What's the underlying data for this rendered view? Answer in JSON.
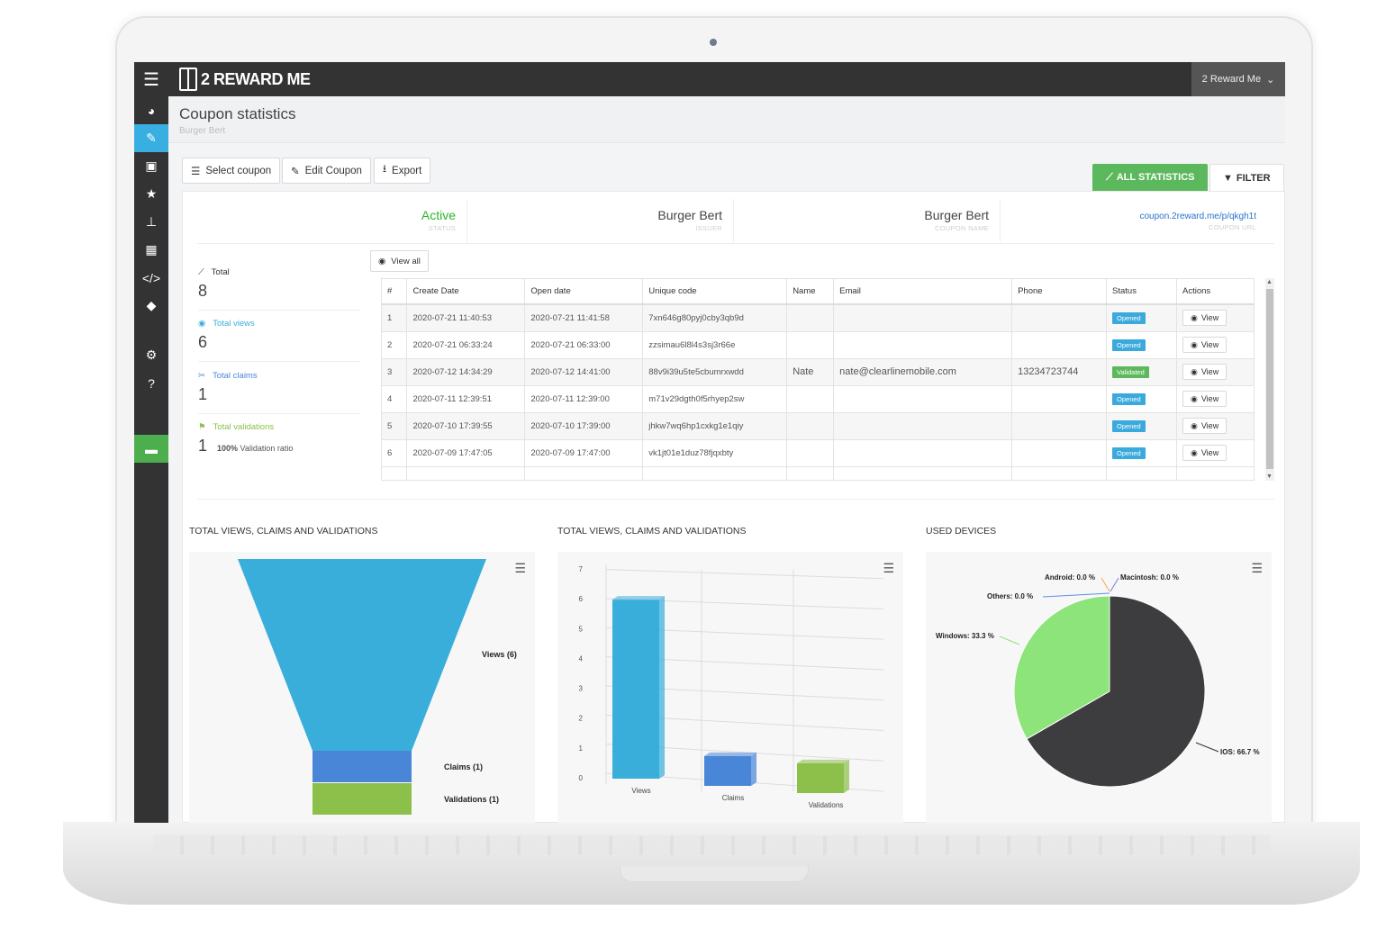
{
  "app": {
    "logo_text": "2 REWARD ME",
    "user_menu": "2 Reward Me"
  },
  "header": {
    "title": "Coupon statistics",
    "subtitle": "Burger Bert"
  },
  "toolbar": {
    "select_coupon": "Select coupon",
    "edit_coupon": "Edit Coupon",
    "export": "Export",
    "all_statistics": "ALL STATISTICS",
    "filter": "FILTER"
  },
  "info": [
    {
      "value": "Active",
      "caption": "STATUS"
    },
    {
      "value": "Burger Bert",
      "caption": "ISSUER"
    },
    {
      "value": "Burger Bert",
      "caption": "COUPON NAME"
    },
    {
      "value": "coupon.2reward.me/p/qkgh1t",
      "caption": "COUPON URL"
    }
  ],
  "stats": {
    "total_label": "Total",
    "total_value": "8",
    "views_label": "Total views",
    "views_value": "6",
    "claims_label": "Total claims",
    "claims_value": "1",
    "validations_label": "Total validations",
    "validations_value": "1",
    "ratio_pct": "100%",
    "ratio_label": "Validation ratio"
  },
  "table": {
    "view_all": "View all",
    "columns": [
      "#",
      "Create Date",
      "Open date",
      "Unique code",
      "Name",
      "Email",
      "Phone",
      "Status",
      "Actions"
    ],
    "rows": [
      [
        "1",
        "2020-07-21 11:40:53",
        "2020-07-21 11:41:58",
        "7xn646g80pyj0cby3qb9d",
        "",
        "",
        "",
        "Opened",
        "View"
      ],
      [
        "2",
        "2020-07-21 06:33:24",
        "2020-07-21 06:33:00",
        "zzsimau6l8l4s3sj3r66e",
        "",
        "",
        "",
        "Opened",
        "View"
      ],
      [
        "3",
        "2020-07-12 14:34:29",
        "2020-07-12 14:41:00",
        "88v9i39u5te5cbumrxwdd",
        "Nate",
        "nate@clearlinemobile.com",
        "13234723744",
        "Validated",
        "View"
      ],
      [
        "4",
        "2020-07-11 12:39:51",
        "2020-07-11 12:39:00",
        "m71v29dgth0f5rhyep2sw",
        "",
        "",
        "",
        "Opened",
        "View"
      ],
      [
        "5",
        "2020-07-10 17:39:55",
        "2020-07-10 17:39:00",
        "jhkw7wq6hp1cxkg1e1qiy",
        "",
        "",
        "",
        "Opened",
        "View"
      ],
      [
        "6",
        "2020-07-09 17:47:05",
        "2020-07-09 17:47:00",
        "vk1jt01e1duz78fjqxbty",
        "",
        "",
        "",
        "Opened",
        "View"
      ]
    ]
  },
  "colors": {
    "views": "#3aaedb",
    "claims": "#4a86d8",
    "validations": "#8cc04b",
    "ios": "#3d3d40",
    "windows": "#8de47a"
  },
  "chart_data": [
    {
      "type": "funnel",
      "title": "TOTAL VIEWS, CLAIMS AND VALIDATIONS",
      "categories": [
        "Views (6)",
        "Claims (1)",
        "Validations (1)"
      ],
      "values": [
        6,
        1,
        1
      ]
    },
    {
      "type": "bar",
      "title": "TOTAL VIEWS, CLAIMS AND VALIDATIONS",
      "categories": [
        "Views",
        "Claims",
        "Validations"
      ],
      "values": [
        6,
        1,
        1
      ],
      "ylim": [
        0,
        7
      ],
      "yticks": [
        "0",
        "1",
        "2",
        "3",
        "4",
        "5",
        "6",
        "7"
      ],
      "grid": true
    },
    {
      "type": "pie",
      "title": "USED DEVICES",
      "labels": [
        "IOS: 66.7 %",
        "Windows: 33.3 %",
        "Others: 0.0 %",
        "Android: 0.0 %",
        "Macintosh: 0.0 %"
      ],
      "values": [
        66.7,
        33.3,
        0.0,
        0.0,
        0.0
      ]
    }
  ]
}
